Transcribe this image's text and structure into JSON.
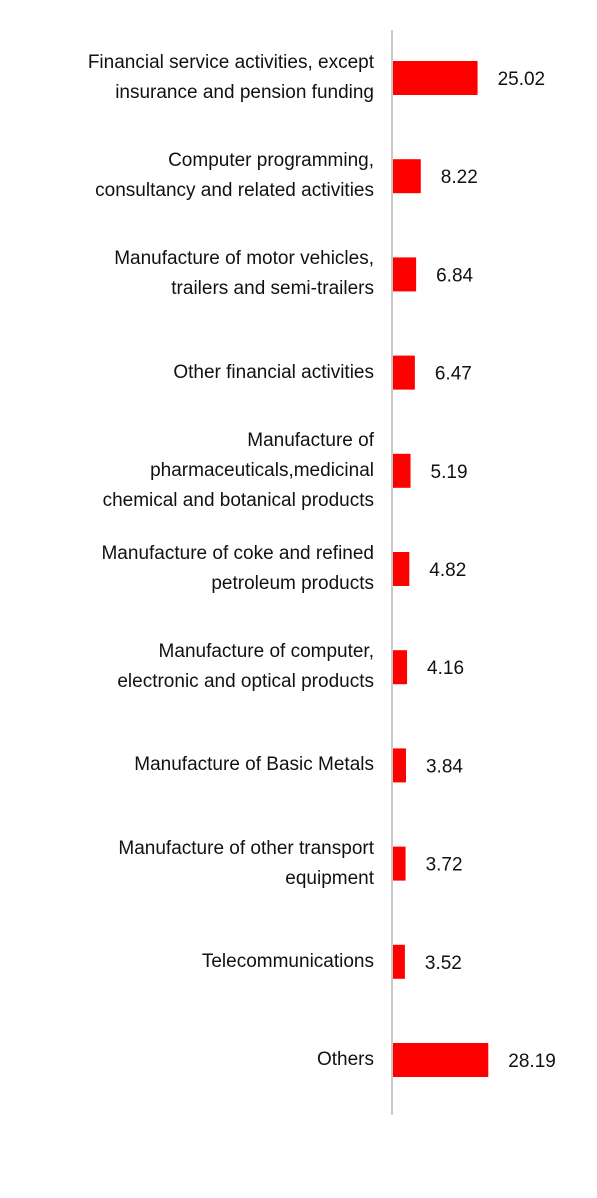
{
  "chart_data": {
    "type": "bar",
    "orientation": "horizontal",
    "title": "",
    "xlabel": "",
    "ylabel": "",
    "grid": false,
    "legend": "none",
    "bar_color": "#ff0000",
    "axis_color": "#c8c8c8",
    "categories": [
      "Financial service activities, except\ninsurance and pension funding",
      "Computer programming,\nconsultancy and related activities",
      "Manufacture of motor vehicles,\ntrailers and semi-trailers",
      "Other financial activities",
      "Manufacture of\npharmaceuticals,medicinal\nchemical and botanical products",
      "Manufacture of coke and refined\npetroleum products",
      "Manufacture of computer,\nelectronic and optical products",
      "Manufacture of Basic Metals",
      "Manufacture of other transport\nequipment",
      "Telecommunications",
      "Others"
    ],
    "values": [
      25.02,
      8.22,
      6.84,
      6.47,
      5.19,
      4.82,
      4.16,
      3.84,
      3.72,
      3.52,
      28.19
    ],
    "value_labels": [
      "25.02",
      "8.22",
      "6.84",
      "6.47",
      "5.19",
      "4.82",
      "4.16",
      "3.84",
      "3.72",
      "3.52",
      "28.19"
    ]
  }
}
